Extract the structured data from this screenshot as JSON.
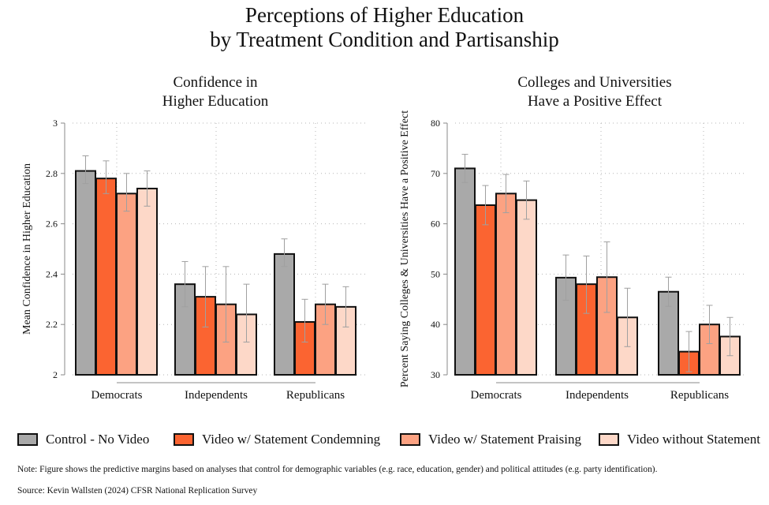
{
  "title": {
    "line1": "Perceptions of Higher Education",
    "line2": "by Treatment Condition and Partisanship"
  },
  "colors": {
    "Control - No Video": "#a9a9a9",
    "Video w/ Statement Condemning": "#fb6431",
    "Video w/ Statement Praising": "#fca282",
    "Video without Statement": "#fdd8c8",
    "error_bar": "#a0a0a0",
    "gridline": "#b5b5b5"
  },
  "legend": [
    {
      "label": "Control - No Video"
    },
    {
      "label": "Video w/ Statement Condemning"
    },
    {
      "label": "Video w/ Statement Praising"
    },
    {
      "label": "Video without Statement"
    }
  ],
  "note": "Note: Figure shows the predictive margins based on analyses that control for demographic variables (e.g. race, education, gender) and political attitudes (e.g. party identification).",
  "source": "Source: Kevin Wallsten (2024) CFSR National Replication Survey",
  "chart_data": [
    {
      "type": "bar",
      "title": [
        "Confidence in",
        "Higher Education"
      ],
      "xlabel": "",
      "ylabel": "Mean Confidence in Higher Education",
      "ylim": [
        2,
        3
      ],
      "yticks": [
        2,
        2.2,
        2.4,
        2.6,
        2.8,
        3
      ],
      "ytick_labels": [
        "2",
        "2.2",
        "2.4",
        "2.6",
        "2.8",
        "3"
      ],
      "grid": true,
      "categories": [
        "Democrats",
        "Independents",
        "Republicans"
      ],
      "series": [
        {
          "name": "Control - No Video",
          "values": [
            2.81,
            2.36,
            2.48
          ],
          "ci_low": [
            2.76,
            2.27,
            2.43
          ],
          "ci_high": [
            2.87,
            2.45,
            2.54
          ]
        },
        {
          "name": "Video w/ Statement Condemning",
          "values": [
            2.78,
            2.31,
            2.21
          ],
          "ci_low": [
            2.72,
            2.19,
            2.13
          ],
          "ci_high": [
            2.85,
            2.43,
            2.3
          ]
        },
        {
          "name": "Video w/ Statement Praising",
          "values": [
            2.72,
            2.28,
            2.28
          ],
          "ci_low": [
            2.65,
            2.13,
            2.2
          ],
          "ci_high": [
            2.8,
            2.43,
            2.36
          ]
        },
        {
          "name": "Video without Statement",
          "values": [
            2.74,
            2.24,
            2.27
          ],
          "ci_low": [
            2.67,
            2.13,
            2.19
          ],
          "ci_high": [
            2.81,
            2.36,
            2.35
          ]
        }
      ]
    },
    {
      "type": "bar",
      "title": [
        "Colleges and Universities",
        "Have a Positive Effect"
      ],
      "xlabel": "",
      "ylabel": "Percent Saying Colleges & Universities Have a Positive Effect",
      "ylim": [
        30,
        80
      ],
      "yticks": [
        30,
        40,
        50,
        60,
        70,
        80
      ],
      "ytick_labels": [
        "30",
        "40",
        "50",
        "60",
        "70",
        "80"
      ],
      "grid": true,
      "categories": [
        "Democrats",
        "Independents",
        "Republicans"
      ],
      "series": [
        {
          "name": "Control - No Video",
          "values": [
            71,
            49.3,
            46.5
          ],
          "ci_low": [
            68.2,
            44.8,
            43.6
          ],
          "ci_high": [
            73.8,
            53.8,
            49.4
          ]
        },
        {
          "name": "Video w/ Statement Condemning",
          "values": [
            63.7,
            48,
            34.6
          ],
          "ci_low": [
            59.8,
            42.2,
            30.6
          ],
          "ci_high": [
            67.6,
            53.6,
            38.6
          ]
        },
        {
          "name": "Video w/ Statement Praising",
          "values": [
            66,
            49.4,
            40
          ],
          "ci_low": [
            62.2,
            42.4,
            36.2
          ],
          "ci_high": [
            69.8,
            56.4,
            43.8
          ]
        },
        {
          "name": "Video without Statement",
          "values": [
            64.7,
            41.4,
            37.6
          ],
          "ci_low": [
            60.9,
            35.6,
            33.8
          ],
          "ci_high": [
            68.5,
            47.2,
            41.4
          ]
        }
      ]
    }
  ]
}
